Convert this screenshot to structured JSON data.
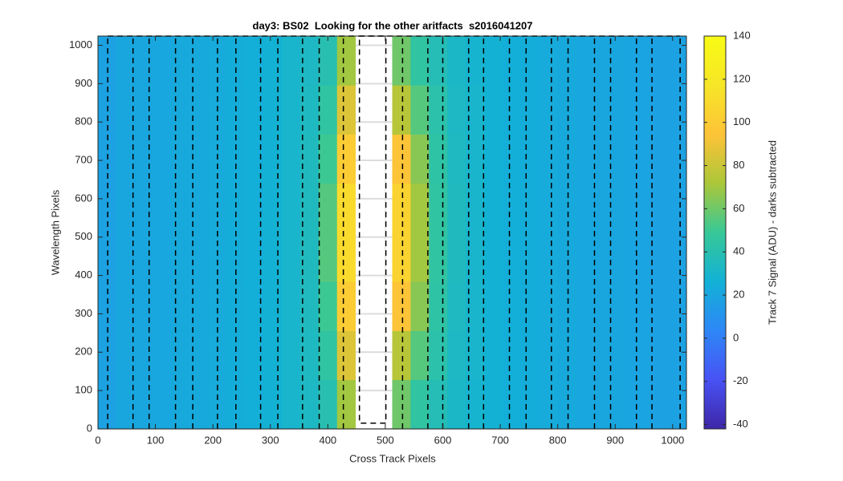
{
  "chart_data": {
    "type": "heatmap",
    "title": "day3: BS02  Looking for the other aritfacts  s2016041207",
    "xlabel": "Cross Track Pixels",
    "ylabel": "Wavelength Pixels",
    "colorbar_label": "Track 7 Signal (ADU) - darks subtracted",
    "colormap": "parula",
    "xlim": [
      0,
      1024
    ],
    "ylim": [
      0,
      1024
    ],
    "xticks": [
      0,
      100,
      200,
      300,
      400,
      500,
      600,
      700,
      800,
      900,
      1000
    ],
    "yticks": [
      0,
      100,
      200,
      300,
      400,
      500,
      600,
      700,
      800,
      900,
      1000
    ],
    "grid": true,
    "clim": [
      -42,
      140
    ],
    "cticks": [
      -40,
      -20,
      0,
      20,
      40,
      60,
      80,
      100,
      120,
      140
    ],
    "x_bins": [
      0,
      32,
      64,
      96,
      128,
      160,
      192,
      224,
      256,
      288,
      320,
      352,
      384,
      416,
      448,
      480,
      512,
      544,
      576,
      608,
      640,
      672,
      704,
      736,
      768,
      800,
      832,
      864,
      896,
      928,
      960,
      992,
      1024
    ],
    "y_bins": [
      0,
      128,
      256,
      384,
      512,
      640,
      768,
      896,
      1024
    ],
    "z": [
      [
        18,
        20,
        20,
        21,
        22,
        22,
        23,
        24,
        25,
        27,
        30,
        33,
        40,
        70,
        null,
        null,
        60,
        45,
        38,
        32,
        29,
        27,
        25,
        24,
        23,
        22,
        21,
        20,
        20,
        19,
        18,
        18
      ],
      [
        18,
        20,
        20,
        21,
        22,
        22,
        23,
        24,
        25,
        27,
        30,
        34,
        45,
        85,
        null,
        null,
        75,
        55,
        42,
        33,
        30,
        27,
        25,
        24,
        23,
        22,
        21,
        20,
        20,
        19,
        18,
        18
      ],
      [
        18,
        20,
        20,
        21,
        22,
        22,
        23,
        24,
        25,
        27,
        30,
        35,
        50,
        100,
        null,
        null,
        95,
        65,
        44,
        34,
        30,
        27,
        25,
        24,
        23,
        22,
        21,
        20,
        20,
        19,
        18,
        18
      ],
      [
        18,
        20,
        20,
        21,
        22,
        22,
        23,
        24,
        25,
        27,
        30,
        35,
        55,
        110,
        null,
        null,
        105,
        70,
        45,
        35,
        30,
        27,
        25,
        24,
        23,
        22,
        21,
        20,
        20,
        19,
        18,
        18
      ],
      [
        18,
        20,
        20,
        21,
        22,
        22,
        23,
        24,
        25,
        27,
        30,
        35,
        55,
        110,
        null,
        null,
        105,
        70,
        45,
        35,
        30,
        27,
        25,
        24,
        23,
        22,
        21,
        20,
        20,
        19,
        18,
        18
      ],
      [
        18,
        20,
        20,
        21,
        22,
        22,
        23,
        24,
        25,
        27,
        30,
        35,
        50,
        100,
        null,
        null,
        95,
        65,
        44,
        34,
        30,
        27,
        25,
        24,
        23,
        22,
        21,
        20,
        20,
        19,
        18,
        18
      ],
      [
        18,
        20,
        20,
        21,
        22,
        22,
        23,
        24,
        25,
        27,
        30,
        34,
        45,
        85,
        null,
        null,
        75,
        55,
        42,
        33,
        30,
        27,
        25,
        24,
        23,
        22,
        21,
        20,
        20,
        19,
        18,
        18
      ],
      [
        18,
        20,
        20,
        21,
        22,
        22,
        23,
        24,
        25,
        27,
        30,
        33,
        40,
        70,
        null,
        null,
        60,
        45,
        38,
        32,
        29,
        27,
        25,
        24,
        23,
        22,
        21,
        20,
        20,
        19,
        18,
        18
      ]
    ],
    "dashed_lines_x": [
      17,
      61,
      89,
      135,
      165,
      208,
      240,
      283,
      313,
      356,
      385,
      427,
      530,
      574,
      600,
      645,
      671,
      716,
      745,
      789,
      818,
      864,
      892,
      937,
      964,
      1013
    ],
    "box_x": [
      455,
      501
    ],
    "box_y": [
      15,
      1024
    ]
  }
}
